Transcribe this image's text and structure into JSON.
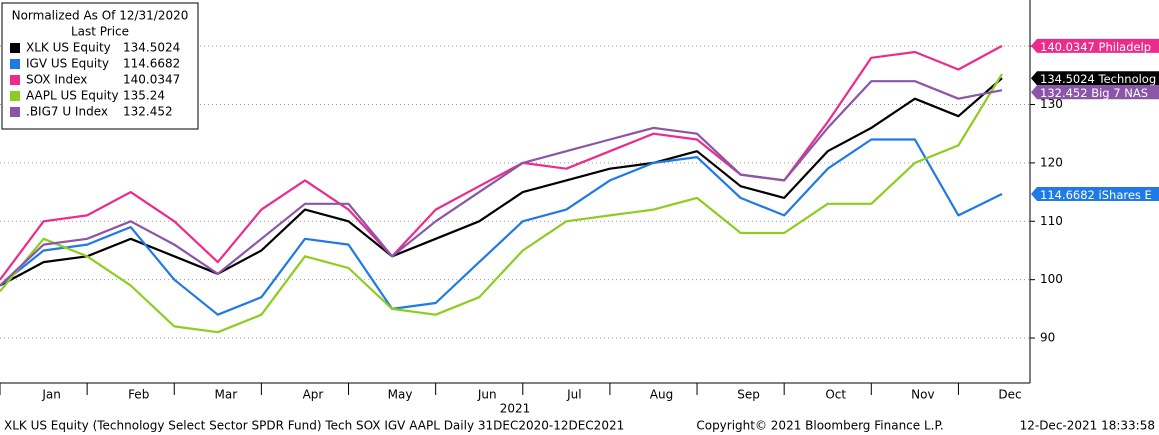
{
  "chart_data": {
    "type": "line",
    "legend_title": "Normalized As Of 12/31/2020",
    "legend_subtitle": "Last Price",
    "legend_position": "upper left",
    "x_label": "2021",
    "categories": [
      null,
      "Jan",
      null,
      "Feb",
      null,
      "Mar",
      null,
      "Apr",
      null,
      "May",
      null,
      "Jun",
      null,
      "Jul",
      null,
      "Aug",
      null,
      "Sep",
      null,
      "Oct",
      null,
      "Nov",
      null,
      "Dec"
    ],
    "series": [
      {
        "name": "XLK US Equity",
        "color": "#000000",
        "tag": "Technolog",
        "values": [
          99,
          103,
          104,
          107,
          104,
          101,
          105,
          112,
          110,
          104,
          107,
          110,
          115,
          117,
          119,
          120,
          122,
          116,
          114,
          122,
          126,
          131,
          128,
          134.5024
        ]
      },
      {
        "name": "IGV US Equity",
        "color": "#1f7ae6",
        "tag": "iShares E",
        "values": [
          99,
          105,
          106,
          109,
          100,
          94,
          97,
          107,
          106,
          95,
          96,
          103,
          110,
          112,
          117,
          120,
          121,
          114,
          111,
          119,
          124,
          124,
          111,
          114.6682
        ]
      },
      {
        "name": "SOX Index",
        "color": "#ec2b8c",
        "tag": "Philadelp",
        "values": [
          100,
          110,
          111,
          115,
          110,
          103,
          112,
          117,
          112,
          104,
          112,
          116,
          120,
          119,
          122,
          125,
          124,
          118,
          117,
          127,
          138,
          139,
          136,
          140.0347
        ]
      },
      {
        "name": "AAPL US Equity",
        "color": "#8dcd1f",
        "values": [
          98,
          107,
          104,
          99,
          92,
          91,
          94,
          104,
          102,
          95,
          94,
          97,
          105,
          110,
          111,
          112,
          114,
          108,
          108,
          113,
          113,
          120,
          123,
          135.24
        ]
      },
      {
        "name": ".BIG7 U Index",
        "color": "#8b55a8",
        "tag": "Big 7 NAS",
        "values": [
          99,
          106,
          107,
          110,
          106,
          101,
          107,
          113,
          113,
          104,
          110,
          115,
          120,
          122,
          124,
          126,
          125,
          118,
          117,
          126,
          134,
          134,
          131,
          132.452
        ]
      }
    ],
    "ylim": [
      82.3,
      147.9
    ],
    "yticks": [
      90,
      100,
      110,
      120,
      130,
      140
    ],
    "grid": true,
    "footer_left": "XLK US Equity (Technology Select Sector SPDR Fund) Tech SOX IGV AAPL  Daily 31DEC2020-12DEC2021",
    "footer_center": "Copyright© 2021 Bloomberg Finance L.P.",
    "footer_right": "12-Dec-2021 18:33:58"
  }
}
